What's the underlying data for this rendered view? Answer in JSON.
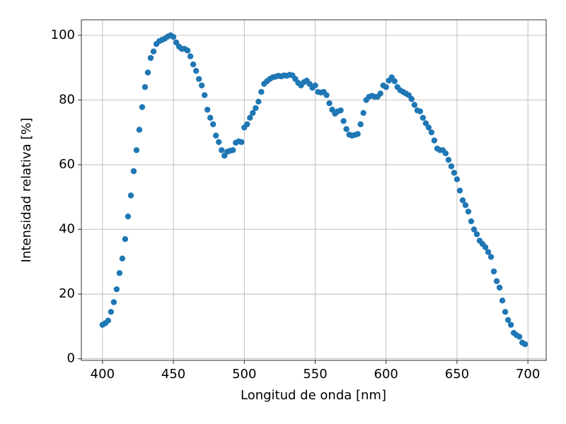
{
  "chart_data": {
    "type": "scatter",
    "xlabel": "Longitud de onda [nm]",
    "ylabel": "Intensidad relativa [%]",
    "xlim": [
      385.1,
      712.9
    ],
    "ylim": [
      -0.5,
      104.8
    ],
    "xticks": [
      400,
      450,
      500,
      550,
      600,
      650,
      700
    ],
    "yticks": [
      0,
      20,
      40,
      60,
      80,
      100
    ],
    "grid": true,
    "color": "#1f77b4",
    "x": [
      400,
      402,
      404,
      406,
      408,
      410,
      412,
      414,
      416,
      418,
      420,
      422,
      424,
      426,
      428,
      430,
      432,
      434,
      436,
      438,
      440,
      442,
      444,
      446,
      448,
      450,
      452,
      454,
      456,
      458,
      460,
      462,
      464,
      466,
      468,
      470,
      472,
      474,
      476,
      478,
      480,
      482,
      484,
      486,
      488,
      490,
      492,
      494,
      496,
      498,
      500,
      502,
      504,
      506,
      508,
      510,
      512,
      514,
      516,
      518,
      520,
      522,
      524,
      526,
      528,
      530,
      532,
      534,
      536,
      538,
      540,
      542,
      544,
      546,
      548,
      550,
      552,
      554,
      556,
      558,
      560,
      562,
      564,
      566,
      568,
      570,
      572,
      574,
      576,
      578,
      580,
      582,
      584,
      586,
      588,
      590,
      592,
      594,
      596,
      598,
      600,
      602,
      604,
      606,
      608,
      610,
      612,
      614,
      616,
      618,
      620,
      622,
      624,
      626,
      628,
      630,
      632,
      634,
      636,
      638,
      640,
      642,
      644,
      646,
      648,
      650,
      652,
      654,
      656,
      658,
      660,
      662,
      664,
      666,
      668,
      670,
      672,
      674,
      676,
      678,
      680,
      682,
      684,
      686,
      688,
      690,
      692,
      694,
      696,
      698
    ],
    "y": [
      10.5,
      11.0,
      11.8,
      14.5,
      17.5,
      21.5,
      26.5,
      31.0,
      37.0,
      44.0,
      50.5,
      58.0,
      64.5,
      70.8,
      77.8,
      84.0,
      88.5,
      93.0,
      95.0,
      97.3,
      98.2,
      98.6,
      99.0,
      99.6,
      100.0,
      99.5,
      97.8,
      96.5,
      95.8,
      95.8,
      95.3,
      93.5,
      91.0,
      89.0,
      86.5,
      84.5,
      81.5,
      77.0,
      74.5,
      72.5,
      69.0,
      67.0,
      64.5,
      62.8,
      64.0,
      64.3,
      64.5,
      66.8,
      67.2,
      67.0,
      71.5,
      72.5,
      74.5,
      76.0,
      77.5,
      79.5,
      82.5,
      85.0,
      85.8,
      86.5,
      87.0,
      87.2,
      87.5,
      87.3,
      87.6,
      87.5,
      87.8,
      87.6,
      86.5,
      85.3,
      84.5,
      85.5,
      86.0,
      85.0,
      83.8,
      84.5,
      82.5,
      82.3,
      82.5,
      81.5,
      79.0,
      77.0,
      75.8,
      76.5,
      76.8,
      73.5,
      71.0,
      69.3,
      69.0,
      69.2,
      69.5,
      72.5,
      76.0,
      80.0,
      81.0,
      81.3,
      81.0,
      81.0,
      82.0,
      84.5,
      84.0,
      86.0,
      87.0,
      85.8,
      84.0,
      83.0,
      82.5,
      82.0,
      81.5,
      80.3,
      78.5,
      76.8,
      76.5,
      74.5,
      72.8,
      71.5,
      70.0,
      67.5,
      65.0,
      64.5,
      64.5,
      63.5,
      61.5,
      59.5,
      57.5,
      55.5,
      52.0,
      49.0,
      47.5,
      45.5,
      42.5,
      40.0,
      38.5,
      36.5,
      35.5,
      34.5,
      33.0,
      31.5,
      27.0,
      24.0,
      22.0,
      18.0,
      14.5,
      12.0,
      10.5,
      8.0,
      7.3,
      6.8,
      5.0,
      4.5
    ]
  }
}
